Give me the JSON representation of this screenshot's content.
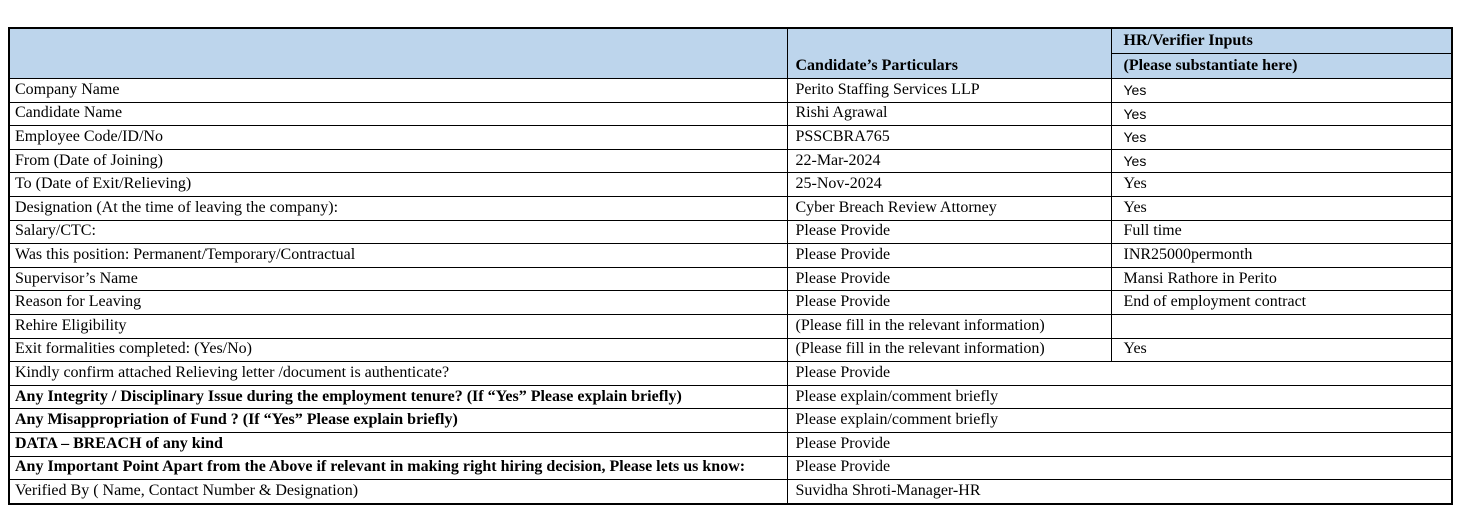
{
  "table": {
    "header": {
      "col1_label": "",
      "col2_label": "Candidate’s Particulars",
      "col3_line1": "HR/Verifier Inputs",
      "col3_line2": "(Please substantiate here)"
    },
    "header_bg": "#bdd5ec",
    "border_color": "#000000",
    "rows": [
      {
        "label": "Company Name",
        "bold": false,
        "particulars": "Perito Staffing Services LLP",
        "hr": "Yes",
        "hr_font": "sans",
        "span": false
      },
      {
        "label": "Candidate Name",
        "bold": false,
        "particulars": "Rishi Agrawal",
        "hr": "Yes",
        "hr_font": "sans",
        "span": false
      },
      {
        "label": "Employee Code/ID/No",
        "bold": false,
        "particulars": "PSSCBRA765",
        "hr": "Yes",
        "hr_font": "sans",
        "span": false
      },
      {
        "label": "From (Date of Joining)",
        "bold": false,
        "particulars": "22-Mar-2024",
        "hr": "Yes",
        "hr_font": "sans",
        "span": false
      },
      {
        "label": "To (Date of Exit/Relieving)",
        "bold": false,
        "particulars": "25-Nov-2024",
        "hr": "Yes",
        "hr_font": "serif",
        "span": false
      },
      {
        "label": "Designation (At the time of leaving the company):",
        "bold": false,
        "particulars": "Cyber Breach Review Attorney",
        "hr": "Yes",
        "hr_font": "serif",
        "span": false
      },
      {
        "label": "Salary/CTC:",
        "bold": false,
        "particulars": "Please Provide",
        "hr": "Full time",
        "hr_font": "serif",
        "span": false
      },
      {
        "label": "Was this position: Permanent/Temporary/Contractual",
        "bold": false,
        "particulars": "Please Provide",
        "hr": "INR25000permonth",
        "hr_font": "serif",
        "span": false
      },
      {
        "label": "Supervisor’s Name",
        "bold": false,
        "particulars": "Please Provide",
        "hr": "Mansi Rathore in Perito",
        "hr_font": "serif",
        "span": false
      },
      {
        "label": "Reason for Leaving",
        "bold": false,
        "particulars": "Please Provide",
        "hr": "End of employment contract",
        "hr_font": "serif",
        "span": false
      },
      {
        "label": "Rehire Eligibility",
        "bold": false,
        "particulars": "(Please fill in the relevant information)",
        "hr": "",
        "hr_font": "serif",
        "span": false
      },
      {
        "label": "Exit formalities completed: (Yes/No)",
        "bold": false,
        "particulars": "(Please fill in the relevant information)",
        "hr": "Yes",
        "hr_font": "serif",
        "span": false
      },
      {
        "label": "Kindly confirm attached Relieving letter /document is authenticate?",
        "bold": false,
        "particulars": "Please Provide",
        "hr": "",
        "hr_font": "serif",
        "span": true
      },
      {
        "label": "Any Integrity / Disciplinary Issue during the employment tenure? (If “Yes” Please explain briefly)",
        "bold": true,
        "particulars": "Please explain/comment briefly",
        "hr": "",
        "hr_font": "serif",
        "span": true
      },
      {
        "label": "Any Misappropriation of Fund ? (If “Yes” Please explain briefly)",
        "bold": true,
        "particulars": "Please explain/comment briefly",
        "hr": "",
        "hr_font": "serif",
        "span": true
      },
      {
        "label": "DATA – BREACH of any kind",
        "bold": true,
        "particulars": "Please Provide",
        "hr": "",
        "hr_font": "serif",
        "span": true
      },
      {
        "label": "Any Important Point Apart from the Above if relevant in making right hiring decision, Please lets us know:",
        "bold": true,
        "particulars": "Please Provide",
        "hr": "",
        "hr_font": "serif",
        "span": true
      },
      {
        "label": "Verified By ( Name, Contact Number & Designation)",
        "bold": false,
        "particulars": "Suvidha Shroti-Manager-HR",
        "hr": "",
        "hr_font": "serif",
        "span": true
      }
    ]
  }
}
